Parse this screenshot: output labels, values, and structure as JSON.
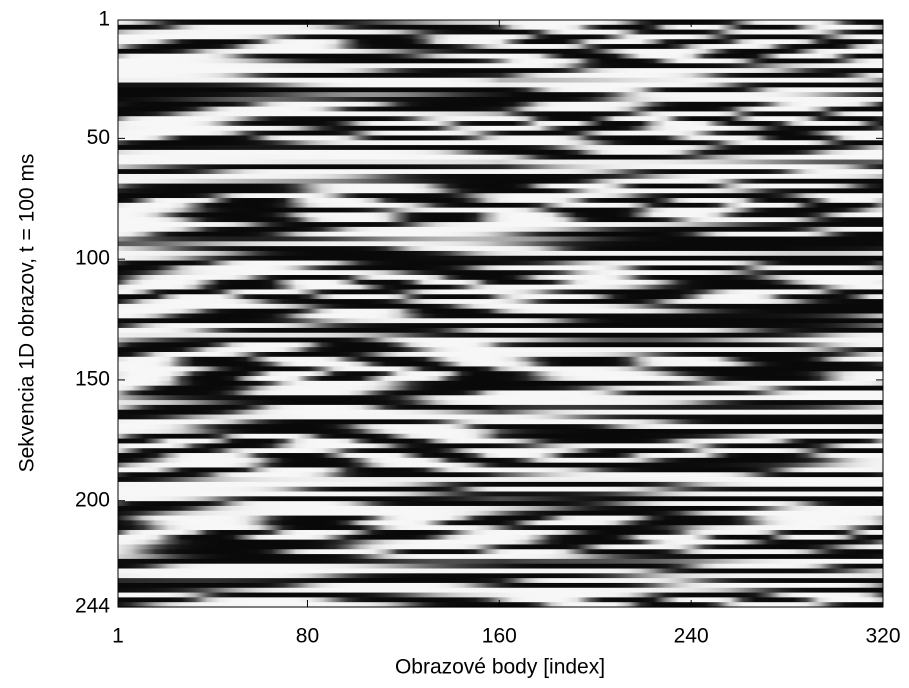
{
  "chart_data": {
    "type": "heatmap",
    "colormap": "gray",
    "x_label": "Obrazové body [index]",
    "y_label": "Sekvencia 1D obrazov, t = 100 ms",
    "xlim": [
      1,
      320
    ],
    "xticks": [
      1,
      80,
      160,
      240,
      320
    ],
    "ylim": [
      1,
      244
    ],
    "yticks": [
      1,
      50,
      100,
      150,
      200,
      244
    ],
    "y_inverted": true
  }
}
